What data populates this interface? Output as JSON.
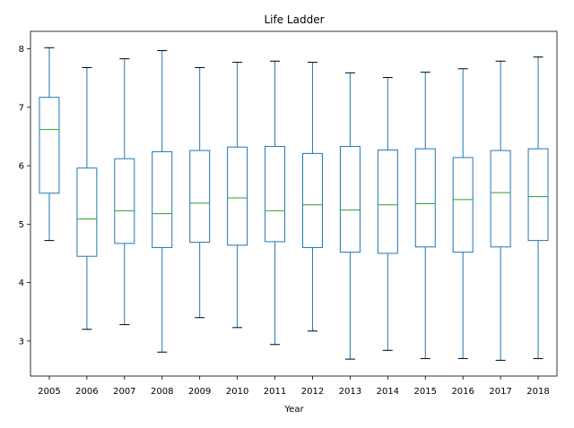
{
  "chart_data": {
    "type": "box",
    "title": "Life Ladder",
    "xlabel": "Year",
    "ylabel": "",
    "ylim": [
      2.4,
      8.3
    ],
    "yticks": [
      3,
      4,
      5,
      6,
      7,
      8
    ],
    "grid": false,
    "colors": {
      "box": "#1f77b4",
      "median": "#2ca02c",
      "cap": "#000000"
    },
    "categories": [
      "2005",
      "2006",
      "2007",
      "2008",
      "2009",
      "2010",
      "2011",
      "2012",
      "2013",
      "2014",
      "2015",
      "2016",
      "2017",
      "2018"
    ],
    "boxes": [
      {
        "min": 4.72,
        "q1": 5.53,
        "median": 6.62,
        "q3": 7.17,
        "max": 8.02
      },
      {
        "min": 3.2,
        "q1": 4.45,
        "median": 5.09,
        "q3": 5.96,
        "max": 7.68
      },
      {
        "min": 3.28,
        "q1": 4.67,
        "median": 5.23,
        "q3": 6.12,
        "max": 7.83
      },
      {
        "min": 2.81,
        "q1": 4.6,
        "median": 5.18,
        "q3": 6.24,
        "max": 7.97
      },
      {
        "min": 3.4,
        "q1": 4.69,
        "median": 5.36,
        "q3": 6.26,
        "max": 7.68
      },
      {
        "min": 3.23,
        "q1": 4.64,
        "median": 5.45,
        "q3": 6.32,
        "max": 7.77
      },
      {
        "min": 2.94,
        "q1": 4.7,
        "median": 5.23,
        "q3": 6.33,
        "max": 7.79
      },
      {
        "min": 3.17,
        "q1": 4.6,
        "median": 5.33,
        "q3": 6.21,
        "max": 7.77
      },
      {
        "min": 2.69,
        "q1": 4.52,
        "median": 5.24,
        "q3": 6.33,
        "max": 7.59
      },
      {
        "min": 2.84,
        "q1": 4.5,
        "median": 5.33,
        "q3": 6.27,
        "max": 7.51
      },
      {
        "min": 2.7,
        "q1": 4.61,
        "median": 5.35,
        "q3": 6.29,
        "max": 7.6
      },
      {
        "min": 2.7,
        "q1": 4.52,
        "median": 5.42,
        "q3": 6.14,
        "max": 7.66
      },
      {
        "min": 2.67,
        "q1": 4.61,
        "median": 5.54,
        "q3": 6.26,
        "max": 7.79
      },
      {
        "min": 2.7,
        "q1": 4.72,
        "median": 5.47,
        "q3": 6.29,
        "max": 7.86
      }
    ]
  }
}
